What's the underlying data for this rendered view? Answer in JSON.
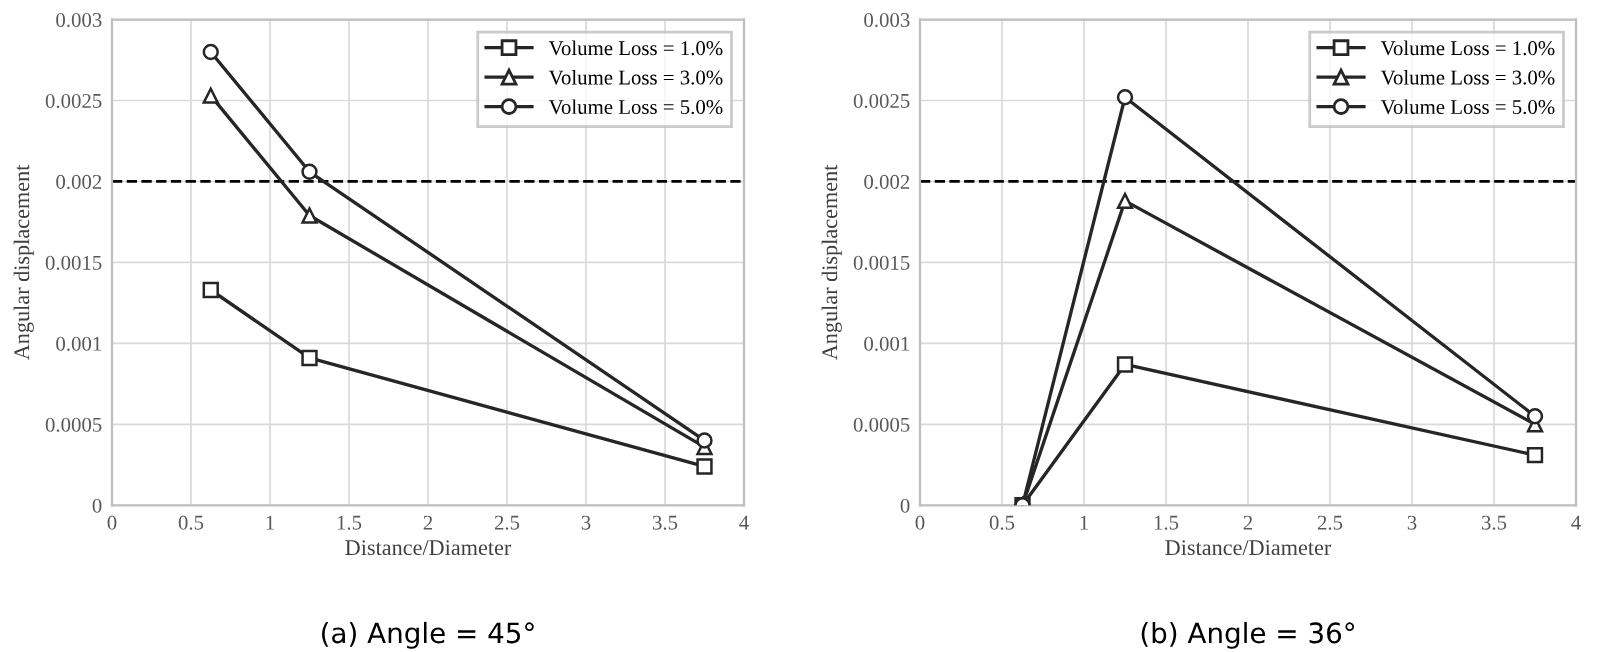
{
  "chart_data": [
    {
      "type": "line",
      "xlabel": "Distance/Diameter",
      "ylabel": "Angular displacement",
      "annotations": [
        "(a) Angle = 45°"
      ],
      "x": [
        0.625,
        1.25,
        3.75
      ],
      "series": [
        {
          "name": "Volume Loss = 1.0%",
          "color": "#262626",
          "marker": "square",
          "values": [
            0.00133,
            0.00091,
            0.00024
          ]
        },
        {
          "name": "Volume Loss = 3.0%",
          "color": "#262626",
          "marker": "triangle",
          "values": [
            0.00253,
            0.00179,
            0.00036
          ]
        },
        {
          "name": "Volume Loss = 5.0%",
          "color": "#262626",
          "marker": "circle",
          "values": [
            0.0028,
            0.00206,
            0.0004
          ]
        }
      ],
      "xlim": [
        0,
        4
      ],
      "xticks": [
        0,
        0.5,
        1,
        1.5,
        2,
        2.5,
        3,
        3.5,
        4
      ],
      "ylim": [
        0,
        0.003
      ],
      "yticks": [
        0,
        0.0005,
        0.001,
        0.0015,
        0.002,
        0.0025,
        0.003
      ],
      "ref_lines": [
        {
          "axis": "y",
          "value": 0.002,
          "color": "#000000",
          "line_style": "dashed"
        }
      ],
      "grid": true,
      "legend": "top right",
      "line_style": "solid"
    },
    {
      "type": "line",
      "xlabel": "Distance/Diameter",
      "ylabel": "Angular displacement",
      "annotations": [
        "(b) Angle = 36°"
      ],
      "x": [
        0.625,
        1.25,
        3.75
      ],
      "series": [
        {
          "name": "Volume Loss = 1.0%",
          "color": "#262626",
          "marker": "square",
          "values": [
            0,
            0.00087,
            0.00031
          ]
        },
        {
          "name": "Volume Loss = 3.0%",
          "color": "#262626",
          "marker": "triangle",
          "values": [
            0,
            0.00188,
            0.0005
          ]
        },
        {
          "name": "Volume Loss = 5.0%",
          "color": "#262626",
          "marker": "circle",
          "values": [
            0,
            0.00252,
            0.00055
          ]
        }
      ],
      "xlim": [
        0,
        4
      ],
      "xticks": [
        0,
        0.5,
        1,
        1.5,
        2,
        2.5,
        3,
        3.5,
        4
      ],
      "ylim": [
        0,
        0.003
      ],
      "yticks": [
        0,
        0.0005,
        0.001,
        0.0015,
        0.002,
        0.0025,
        0.003
      ],
      "ref_lines": [
        {
          "axis": "y",
          "value": 0.002,
          "color": "#000000",
          "line_style": "dashed"
        }
      ],
      "grid": true,
      "legend": "top right",
      "line_style": "solid"
    }
  ]
}
